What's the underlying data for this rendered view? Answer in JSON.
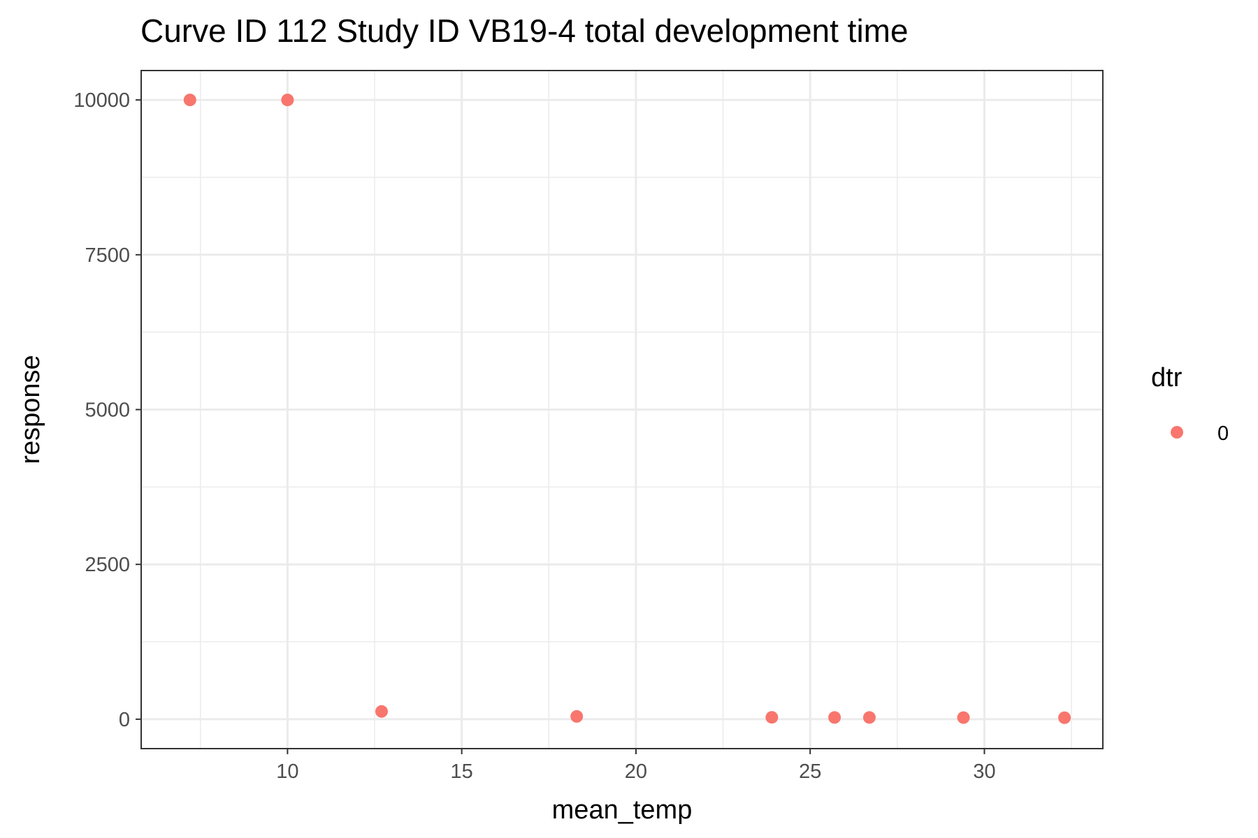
{
  "chart_data": {
    "type": "scatter",
    "title": "Curve ID 112 Study ID VB19-4 total development time",
    "xlabel": "mean_temp",
    "ylabel": "response",
    "xlim": [
      5.8,
      33.4
    ],
    "ylim": [
      -475,
      10475
    ],
    "x_ticks": [
      10,
      15,
      20,
      25,
      30
    ],
    "x_minor_ticks": [
      7.5,
      12.5,
      17.5,
      22.5,
      27.5,
      32.5
    ],
    "y_ticks": [
      0,
      2500,
      5000,
      7500,
      10000
    ],
    "y_minor_ticks": [
      1250,
      3750,
      6250,
      8750
    ],
    "x_tick_labels": [
      "10",
      "15",
      "20",
      "25",
      "30"
    ],
    "y_tick_labels": [
      "0",
      "2500",
      "5000",
      "7500",
      "10000"
    ],
    "grid": true,
    "legend": {
      "title": "dtr",
      "placement": "right"
    },
    "series": [
      {
        "name": "0",
        "color": "#F8766D",
        "x": [
          7.2,
          10.0,
          12.7,
          18.3,
          23.9,
          25.7,
          26.7,
          29.4,
          32.3
        ],
        "y": [
          10000,
          10000,
          125,
          45,
          30,
          28,
          28,
          26,
          24
        ]
      }
    ]
  }
}
